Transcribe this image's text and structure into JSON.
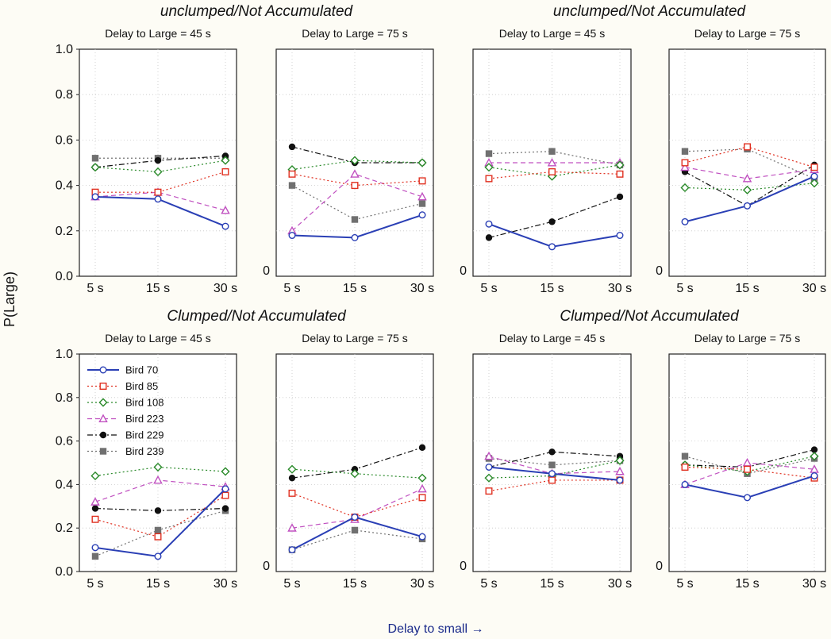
{
  "figure": {
    "y_label": "P(Large)",
    "x_label": "Delay to small →"
  },
  "chart_data": {
    "type": "line",
    "x_categories": [
      "5 s",
      "15 s",
      "30 s"
    ],
    "y_ticks": [
      "0.0",
      "0.2",
      "0.4",
      "0.6",
      "0.8",
      "1.0"
    ],
    "ylim": [
      0,
      1
    ],
    "grid": true,
    "legend": {
      "placement": "top-left of bottom-left panel",
      "entries": [
        {
          "name": "Bird 70",
          "color": "#2a3fb5",
          "marker": "circle-open",
          "dash": "solid"
        },
        {
          "name": "Bird 85",
          "color": "#e03020",
          "marker": "square-open",
          "dash": "dotted"
        },
        {
          "name": "Bird 108",
          "color": "#2a8a2a",
          "marker": "diamond-open",
          "dash": "dotted"
        },
        {
          "name": "Bird 223",
          "color": "#c050c0",
          "marker": "triangle-open",
          "dash": "dashed"
        },
        {
          "name": "Bird 229",
          "color": "#111111",
          "marker": "circle-filled",
          "dash": "dashdot"
        },
        {
          "name": "Bird 239",
          "color": "#707070",
          "marker": "square-filled",
          "dash": "dotted"
        }
      ]
    },
    "groups": [
      {
        "title": "unclumped/Not Accumulated",
        "row": 0,
        "col": 0
      },
      {
        "title": "unclumped/Not Accumulated",
        "row": 0,
        "col": 1
      },
      {
        "title": "Clumped/Not Accumulated",
        "row": 1,
        "col": 0
      },
      {
        "title": "Clumped/Not Accumulated",
        "row": 1,
        "col": 1
      }
    ],
    "panels": [
      {
        "subtitle": "Delay to Large = 45 s",
        "row": 0,
        "col": 0,
        "y_tick_labels": "full",
        "series": [
          [
            0.35,
            0.34,
            0.22
          ],
          [
            0.37,
            0.37,
            0.46
          ],
          [
            0.48,
            0.46,
            0.51
          ],
          [
            0.35,
            0.37,
            0.29
          ],
          [
            0.48,
            0.51,
            0.53
          ],
          [
            0.52,
            0.52,
            0.52
          ]
        ]
      },
      {
        "subtitle": "Delay to Large = 75 s",
        "row": 0,
        "col": 1,
        "y_tick_labels": "zero",
        "series": [
          [
            0.18,
            0.17,
            0.27
          ],
          [
            0.45,
            0.4,
            0.42
          ],
          [
            0.47,
            0.51,
            0.5
          ],
          [
            0.2,
            0.45,
            0.35
          ],
          [
            0.57,
            0.5,
            0.5
          ],
          [
            0.4,
            0.25,
            0.32
          ]
        ]
      },
      {
        "subtitle": "Delay to Large = 45 s",
        "row": 0,
        "col": 2,
        "y_tick_labels": "zero",
        "series": [
          [
            0.23,
            0.13,
            0.18
          ],
          [
            0.43,
            0.46,
            0.45
          ],
          [
            0.48,
            0.44,
            0.49
          ],
          [
            0.5,
            0.5,
            0.5
          ],
          [
            0.17,
            0.24,
            0.35
          ],
          [
            0.54,
            0.55,
            0.49
          ]
        ]
      },
      {
        "subtitle": "Delay to Large = 75 s",
        "row": 0,
        "col": 3,
        "y_tick_labels": "zero",
        "series": [
          [
            0.24,
            0.31,
            0.44
          ],
          [
            0.5,
            0.57,
            0.48
          ],
          [
            0.39,
            0.38,
            0.41
          ],
          [
            0.48,
            0.43,
            0.47
          ],
          [
            0.46,
            0.31,
            0.49
          ],
          [
            0.55,
            0.56,
            0.43
          ]
        ]
      },
      {
        "subtitle": "Delay to Large = 45 s",
        "row": 1,
        "col": 0,
        "y_tick_labels": "full",
        "series": [
          [
            0.11,
            0.07,
            0.38
          ],
          [
            0.24,
            0.16,
            0.35
          ],
          [
            0.44,
            0.48,
            0.46
          ],
          [
            0.32,
            0.42,
            0.39
          ],
          [
            0.29,
            0.28,
            0.29
          ],
          [
            0.07,
            0.19,
            0.28
          ]
        ]
      },
      {
        "subtitle": "Delay to Large = 75 s",
        "row": 1,
        "col": 1,
        "y_tick_labels": "zero",
        "series": [
          [
            0.1,
            0.25,
            0.16
          ],
          [
            0.36,
            0.25,
            0.34
          ],
          [
            0.47,
            0.45,
            0.43
          ],
          [
            0.2,
            0.24,
            0.38
          ],
          [
            0.43,
            0.47,
            0.57
          ],
          [
            0.1,
            0.19,
            0.15
          ]
        ]
      },
      {
        "subtitle": "Delay to Large = 45 s",
        "row": 1,
        "col": 2,
        "y_tick_labels": "zero",
        "series": [
          [
            0.48,
            0.45,
            0.42
          ],
          [
            0.37,
            0.42,
            0.42
          ],
          [
            0.43,
            0.44,
            0.51
          ],
          [
            0.53,
            0.45,
            0.46
          ],
          [
            0.48,
            0.55,
            0.53
          ],
          [
            0.52,
            0.49,
            0.51
          ]
        ]
      },
      {
        "subtitle": "Delay to Large = 75 s",
        "row": 1,
        "col": 3,
        "y_tick_labels": "zero",
        "series": [
          [
            0.4,
            0.34,
            0.44
          ],
          [
            0.48,
            0.47,
            0.43
          ],
          [
            0.49,
            0.46,
            0.53
          ],
          [
            0.4,
            0.5,
            0.47
          ],
          [
            0.49,
            0.48,
            0.56
          ],
          [
            0.53,
            0.45,
            0.52
          ]
        ]
      }
    ]
  }
}
